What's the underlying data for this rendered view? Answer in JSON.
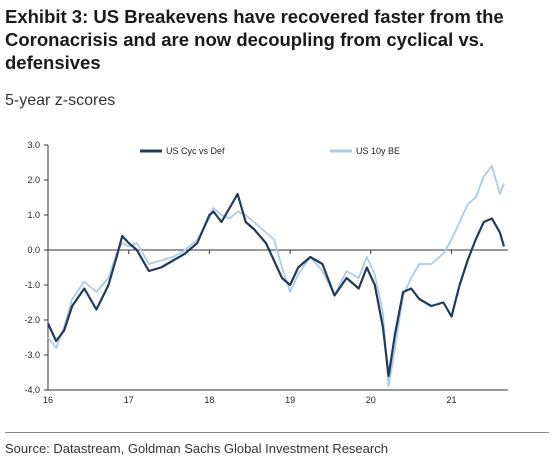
{
  "title": "Exhibit 3: US Breakevens have recovered faster from the Coronacrisis and are now decoupling from cyclical vs. defensives",
  "subtitle": "5-year z-scores",
  "source": "Source: Datastream, Goldman Sachs Global Investment Research",
  "colors": {
    "cyc": "#1f3a5f",
    "be": "#a9cde8",
    "axis": "#333333"
  },
  "chart_data": {
    "type": "line",
    "title": "",
    "xlabel": "",
    "ylabel": "",
    "ylim": [
      -4.0,
      3.0
    ],
    "xlim": [
      2016.0,
      2021.7
    ],
    "y_ticks": [
      "3.0",
      "2.0",
      "1.0",
      "0.0",
      "-1.0",
      "-2.0",
      "-3.0",
      "-4.0"
    ],
    "x_ticks": [
      "16",
      "17",
      "18",
      "19",
      "20",
      "21"
    ],
    "grid": false,
    "legend": "top",
    "series": [
      {
        "name": "US Cyc vs Def",
        "x": [
          2016.0,
          2016.1,
          2016.2,
          2016.3,
          2016.45,
          2016.6,
          2016.75,
          2016.85,
          2016.92,
          2017.0,
          2017.1,
          2017.25,
          2017.4,
          2017.55,
          2017.7,
          2017.85,
          2018.0,
          2018.05,
          2018.15,
          2018.25,
          2018.35,
          2018.45,
          2018.55,
          2018.7,
          2018.8,
          2018.9,
          2019.0,
          2019.1,
          2019.25,
          2019.4,
          2019.55,
          2019.7,
          2019.85,
          2019.95,
          2020.05,
          2020.15,
          2020.22,
          2020.3,
          2020.4,
          2020.5,
          2020.6,
          2020.75,
          2020.9,
          2021.0,
          2021.1,
          2021.2,
          2021.3,
          2021.4,
          2021.5,
          2021.6,
          2021.65
        ],
        "values": [
          -2.1,
          -2.6,
          -2.3,
          -1.6,
          -1.1,
          -1.7,
          -1.0,
          -0.2,
          0.4,
          0.2,
          0.0,
          -0.6,
          -0.5,
          -0.3,
          -0.1,
          0.2,
          1.0,
          1.1,
          0.8,
          1.2,
          1.6,
          0.8,
          0.6,
          0.2,
          -0.3,
          -0.8,
          -1.0,
          -0.5,
          -0.2,
          -0.4,
          -1.3,
          -0.8,
          -1.1,
          -0.5,
          -1.0,
          -2.2,
          -3.6,
          -2.4,
          -1.2,
          -1.1,
          -1.4,
          -1.6,
          -1.5,
          -1.9,
          -1.0,
          -0.3,
          0.3,
          0.8,
          0.9,
          0.5,
          0.1
        ]
      },
      {
        "name": "US 10y BE",
        "x": [
          2016.0,
          2016.1,
          2016.2,
          2016.3,
          2016.45,
          2016.6,
          2016.75,
          2016.85,
          2016.92,
          2017.0,
          2017.1,
          2017.25,
          2017.4,
          2017.55,
          2017.7,
          2017.85,
          2018.0,
          2018.05,
          2018.15,
          2018.25,
          2018.35,
          2018.45,
          2018.55,
          2018.7,
          2018.8,
          2018.9,
          2019.0,
          2019.1,
          2019.25,
          2019.4,
          2019.55,
          2019.7,
          2019.85,
          2019.95,
          2020.05,
          2020.15,
          2020.22,
          2020.3,
          2020.4,
          2020.5,
          2020.6,
          2020.75,
          2020.9,
          2021.0,
          2021.1,
          2021.2,
          2021.3,
          2021.4,
          2021.5,
          2021.6,
          2021.65
        ],
        "values": [
          -2.5,
          -2.8,
          -2.2,
          -1.4,
          -0.9,
          -1.2,
          -0.8,
          -0.1,
          0.2,
          0.1,
          0.2,
          -0.4,
          -0.3,
          -0.2,
          0.0,
          0.3,
          0.9,
          1.2,
          1.0,
          0.9,
          1.1,
          1.0,
          0.8,
          0.5,
          0.3,
          -0.5,
          -1.2,
          -0.7,
          -0.2,
          -0.6,
          -1.3,
          -0.6,
          -0.8,
          -0.2,
          -0.7,
          -1.8,
          -3.9,
          -2.8,
          -1.3,
          -0.8,
          -0.4,
          -0.4,
          -0.1,
          0.3,
          0.8,
          1.3,
          1.5,
          2.1,
          2.4,
          1.6,
          1.9
        ]
      }
    ]
  }
}
